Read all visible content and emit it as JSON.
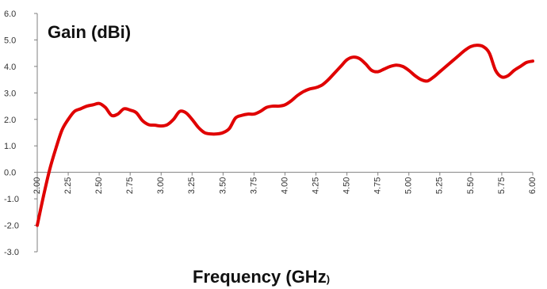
{
  "chart_data": {
    "type": "line",
    "title": "",
    "ylabel": "Gain (dBi)",
    "xlabel_main": "Frequency (GHz",
    "xlabel_suffix": ")",
    "xlim": [
      2.0,
      6.0
    ],
    "ylim": [
      -3.0,
      6.0
    ],
    "x_ticks": [
      "2.00",
      "2.25",
      "2.50",
      "2.75",
      "3.00",
      "3.25",
      "3.50",
      "3.75",
      "4.00",
      "4.25",
      "4.50",
      "4.75",
      "5.00",
      "5.25",
      "5.50",
      "5.75",
      "6.00"
    ],
    "y_ticks": [
      "6.0",
      "5.0",
      "4.0",
      "3.0",
      "2.0",
      "1.0",
      "0.0",
      "-1.0",
      "-2.0",
      "-3.0"
    ],
    "grid": false,
    "legend": "none",
    "line_color": "#e00000",
    "series": [
      {
        "x": [
          2.0,
          2.05,
          2.1,
          2.15,
          2.2,
          2.25,
          2.3,
          2.35,
          2.4,
          2.45,
          2.5,
          2.55,
          2.6,
          2.65,
          2.7,
          2.75,
          2.8,
          2.85,
          2.9,
          2.95,
          3.0,
          3.05,
          3.1,
          3.15,
          3.2,
          3.25,
          3.3,
          3.35,
          3.4,
          3.45,
          3.5,
          3.55,
          3.6,
          3.65,
          3.7,
          3.75,
          3.8,
          3.85,
          3.9,
          3.95,
          4.0,
          4.05,
          4.1,
          4.15,
          4.2,
          4.25,
          4.3,
          4.35,
          4.4,
          4.45,
          4.5,
          4.55,
          4.6,
          4.65,
          4.7,
          4.75,
          4.8,
          4.85,
          4.9,
          4.95,
          5.0,
          5.05,
          5.1,
          5.15,
          5.2,
          5.25,
          5.3,
          5.35,
          5.4,
          5.45,
          5.5,
          5.55,
          5.6,
          5.65,
          5.7,
          5.75,
          5.8,
          5.85,
          5.9,
          5.95,
          6.0
        ],
        "y": [
          -2.0,
          -0.9,
          0.1,
          0.9,
          1.6,
          2.0,
          2.3,
          2.4,
          2.5,
          2.55,
          2.6,
          2.45,
          2.15,
          2.2,
          2.4,
          2.35,
          2.25,
          1.95,
          1.8,
          1.78,
          1.75,
          1.8,
          2.0,
          2.3,
          2.25,
          2.0,
          1.7,
          1.5,
          1.45,
          1.45,
          1.5,
          1.65,
          2.05,
          2.15,
          2.2,
          2.2,
          2.3,
          2.45,
          2.5,
          2.5,
          2.55,
          2.7,
          2.9,
          3.05,
          3.15,
          3.2,
          3.3,
          3.5,
          3.75,
          4.0,
          4.25,
          4.35,
          4.3,
          4.1,
          3.85,
          3.8,
          3.9,
          4.0,
          4.05,
          4.0,
          3.85,
          3.65,
          3.5,
          3.45,
          3.6,
          3.8,
          4.0,
          4.2,
          4.4,
          4.6,
          4.75,
          4.8,
          4.75,
          4.5,
          3.85,
          3.6,
          3.65,
          3.85,
          4.0,
          4.15,
          4.2
        ]
      }
    ]
  }
}
